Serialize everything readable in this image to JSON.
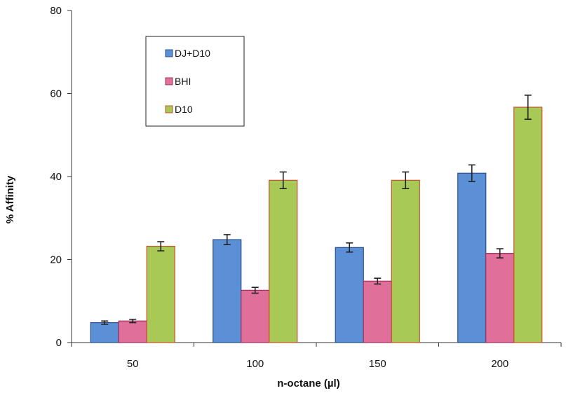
{
  "chart_data": {
    "type": "bar",
    "categories": [
      "50",
      "100",
      "150",
      "200"
    ],
    "series": [
      {
        "name": "DJ+D10",
        "values": [
          4.8,
          24.8,
          22.9,
          40.8
        ],
        "errors": [
          0.4,
          1.2,
          1.1,
          2.0
        ],
        "color": "#5b8fd6",
        "edge": "#2a4f8a"
      },
      {
        "name": "BHI",
        "values": [
          5.2,
          12.6,
          14.8,
          21.5
        ],
        "errors": [
          0.4,
          0.7,
          0.7,
          1.1
        ],
        "color": "#e0709a",
        "edge": "#a03060"
      },
      {
        "name": "D10",
        "values": [
          23.2,
          39.1,
          39.1,
          56.7
        ],
        "errors": [
          1.1,
          2.0,
          2.0,
          2.9
        ],
        "color": "#a8c956",
        "edge": "#c8502a"
      }
    ],
    "xlabel": "n-octane (µl)",
    "ylabel": "% Affinity",
    "ylim": [
      0,
      80
    ],
    "yticks": [
      "0",
      "20",
      "40",
      "60",
      "80"
    ],
    "legend_position": "top-left-inside",
    "grid": false
  }
}
